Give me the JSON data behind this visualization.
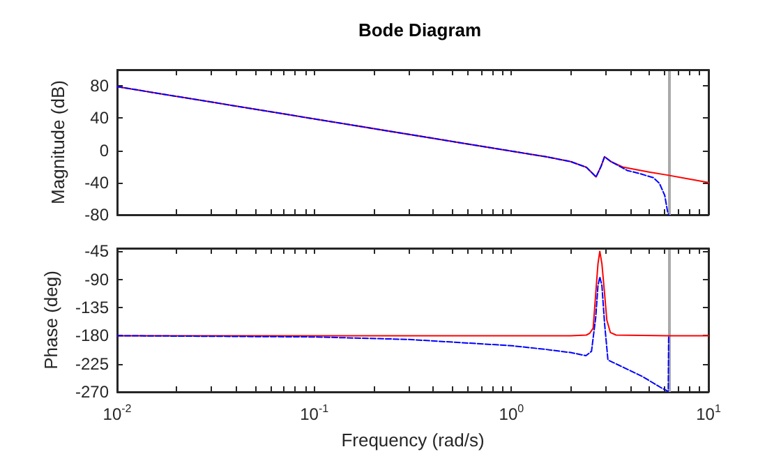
{
  "chart_data": [
    {
      "type": "line",
      "title": "Bode Diagram",
      "ylabel": "Magnitude (dB)",
      "log": "x",
      "tick_labels": "y",
      "xlim": [
        0.01,
        10
      ],
      "xticks": [
        {
          "value": 0.01,
          "label": null
        },
        {
          "value": 0.02,
          "label": null
        },
        {
          "value": 0.03,
          "label": null
        },
        {
          "value": 0.04,
          "label": null
        },
        {
          "value": 0.05,
          "label": null
        },
        {
          "value": 0.06,
          "label": null
        },
        {
          "value": 0.07,
          "label": null
        },
        {
          "value": 0.08,
          "label": null
        },
        {
          "value": 0.09,
          "label": null
        },
        {
          "value": 0.1,
          "label": null
        },
        {
          "value": 0.2,
          "label": null
        },
        {
          "value": 0.3,
          "label": null
        },
        {
          "value": 0.4,
          "label": null
        },
        {
          "value": 0.5,
          "label": null
        },
        {
          "value": 0.6,
          "label": null
        },
        {
          "value": 0.7,
          "label": null
        },
        {
          "value": 0.8,
          "label": null
        },
        {
          "value": 0.9,
          "label": null
        },
        {
          "value": 1,
          "label": null
        },
        {
          "value": 2,
          "label": null
        },
        {
          "value": 3,
          "label": null
        },
        {
          "value": 4,
          "label": null
        },
        {
          "value": 5,
          "label": null
        },
        {
          "value": 6,
          "label": null
        },
        {
          "value": 7,
          "label": null
        },
        {
          "value": 8,
          "label": null
        },
        {
          "value": 9,
          "label": null
        },
        {
          "value": 10,
          "label": null
        }
      ],
      "ylim": [
        -80,
        100
      ],
      "yticks": [
        -80,
        -40,
        0,
        40,
        80
      ],
      "grid": false,
      "ref_lines": [
        {
          "axis": "x",
          "value": 6.28,
          "color": "#aaaaaa"
        }
      ],
      "series": [
        {
          "color": "#ff0000",
          "line_style": "solid",
          "x": [
            0.01,
            0.1,
            1,
            1.5,
            2,
            2.4,
            2.69,
            2.85,
            2.97,
            3.2,
            3.7,
            5,
            6.28,
            10
          ],
          "values": [
            79,
            39,
            -1,
            -8,
            -14,
            -21,
            -33,
            -20,
            -8,
            -14,
            -21,
            -27,
            -31,
            -40
          ]
        },
        {
          "color": "#0000ff",
          "line_style": "dashed",
          "x": [
            0.01,
            0.1,
            1,
            1.5,
            2,
            2.4,
            2.69,
            2.85,
            2.97,
            3.2,
            3.87,
            4.5,
            5.25,
            5.64,
            6.0,
            6.2,
            6.28
          ],
          "values": [
            79,
            39,
            -1,
            -8,
            -14,
            -21,
            -33,
            -20,
            -8,
            -14,
            -25,
            -29,
            -34,
            -41,
            -56,
            -76,
            -80
          ]
        }
      ]
    },
    {
      "type": "line",
      "xlabel": "Frequency (rad/s)",
      "ylabel": "Phase (deg)",
      "log": "x",
      "xlim": [
        0.01,
        10
      ],
      "xticks": [
        {
          "value": 0.01,
          "label": "10$^{-2}$"
        },
        {
          "value": 0.02,
          "label": null
        },
        {
          "value": 0.03,
          "label": null
        },
        {
          "value": 0.04,
          "label": null
        },
        {
          "value": 0.05,
          "label": null
        },
        {
          "value": 0.06,
          "label": null
        },
        {
          "value": 0.07,
          "label": null
        },
        {
          "value": 0.08,
          "label": null
        },
        {
          "value": 0.09,
          "label": null
        },
        {
          "value": 0.1,
          "label": "10$^{-1}$"
        },
        {
          "value": 0.2,
          "label": null
        },
        {
          "value": 0.3,
          "label": null
        },
        {
          "value": 0.4,
          "label": null
        },
        {
          "value": 0.5,
          "label": null
        },
        {
          "value": 0.6,
          "label": null
        },
        {
          "value": 0.7,
          "label": null
        },
        {
          "value": 0.8,
          "label": null
        },
        {
          "value": 0.9,
          "label": null
        },
        {
          "value": 1,
          "label": "10$^{0}$"
        },
        {
          "value": 2,
          "label": null
        },
        {
          "value": 3,
          "label": null
        },
        {
          "value": 4,
          "label": null
        },
        {
          "value": 5,
          "label": null
        },
        {
          "value": 6,
          "label": null
        },
        {
          "value": 7,
          "label": null
        },
        {
          "value": 8,
          "label": null
        },
        {
          "value": 9,
          "label": null
        },
        {
          "value": 10,
          "label": "10$^{1}$"
        }
      ],
      "ylim": [
        -270,
        -40
      ],
      "yticks": [
        -270,
        -225,
        -180,
        -135,
        -90,
        -45
      ],
      "grid": false,
      "ref_lines": [
        {
          "axis": "x",
          "value": 6.28,
          "color": "#aaaaaa"
        }
      ],
      "series": [
        {
          "color": "#ff0000",
          "line_style": "solid",
          "x": [
            0.01,
            0.1,
            1,
            2,
            2.4,
            2.5,
            2.6,
            2.68,
            2.75,
            2.81,
            2.88,
            2.97,
            3.05,
            3.18,
            3.4,
            6.28,
            10
          ],
          "values": [
            -180,
            -180,
            -180,
            -180,
            -179,
            -176,
            -168,
            -112,
            -65,
            -45,
            -65,
            -112,
            -155,
            -175,
            -179,
            -180,
            -180
          ]
        },
        {
          "color": "#0000ff",
          "line_style": "dashed",
          "x": [
            0.01,
            0.1,
            0.3,
            1,
            1.5,
            2,
            2.39,
            2.55,
            2.68,
            2.75,
            2.81,
            2.88,
            2.97,
            3.09,
            3.5,
            4.6,
            5.8,
            6.25,
            6.28
          ],
          "values": [
            -180,
            -182,
            -186,
            -196,
            -202,
            -207,
            -212,
            -205,
            -150,
            -100,
            -86,
            -100,
            -160,
            -219,
            -227,
            -245,
            -264,
            -269,
            -180
          ]
        }
      ]
    }
  ]
}
